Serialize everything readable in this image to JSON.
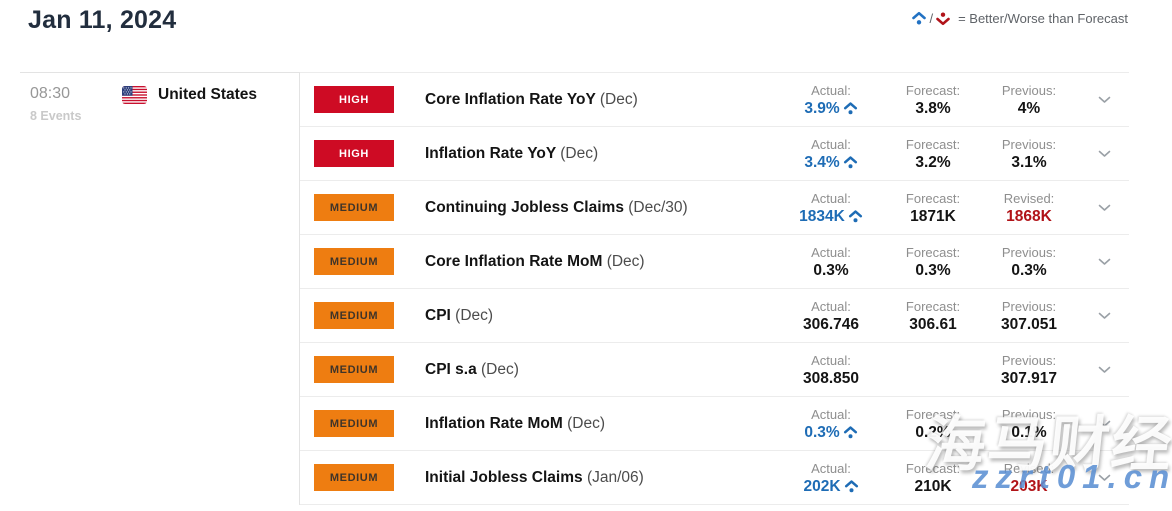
{
  "header": {
    "title": "Jan 11, 2024",
    "legend": {
      "separator": "/",
      "text": "= Better/Worse than Forecast"
    }
  },
  "sidebar": {
    "time": "08:30",
    "events_count": "8 Events",
    "country": "United States"
  },
  "colors": {
    "high_badge": "#ce0b24",
    "medium_badge": "#ee7d11",
    "better_blue": "#1e6cb5",
    "revised_red": "#b11318"
  },
  "events": [
    {
      "importance": "HIGH",
      "name": "Core Inflation Rate YoY",
      "period": "(Dec)",
      "actual": {
        "label": "Actual:",
        "value": "3.9%",
        "state": "better"
      },
      "forecast": {
        "label": "Forecast:",
        "value": "3.8%"
      },
      "third": {
        "label": "Previous:",
        "value": "4%",
        "state": "normal"
      }
    },
    {
      "importance": "HIGH",
      "name": "Inflation Rate YoY",
      "period": "(Dec)",
      "actual": {
        "label": "Actual:",
        "value": "3.4%",
        "state": "better"
      },
      "forecast": {
        "label": "Forecast:",
        "value": "3.2%"
      },
      "third": {
        "label": "Previous:",
        "value": "3.1%",
        "state": "normal"
      }
    },
    {
      "importance": "MEDIUM",
      "name": "Continuing Jobless Claims",
      "period": "(Dec/30)",
      "actual": {
        "label": "Actual:",
        "value": "1834K",
        "state": "better"
      },
      "forecast": {
        "label": "Forecast:",
        "value": "1871K"
      },
      "third": {
        "label": "Revised:",
        "value": "1868K",
        "state": "revised"
      }
    },
    {
      "importance": "MEDIUM",
      "name": "Core Inflation Rate MoM",
      "period": "(Dec)",
      "actual": {
        "label": "Actual:",
        "value": "0.3%",
        "state": "normal"
      },
      "forecast": {
        "label": "Forecast:",
        "value": "0.3%"
      },
      "third": {
        "label": "Previous:",
        "value": "0.3%",
        "state": "normal"
      }
    },
    {
      "importance": "MEDIUM",
      "name": "CPI",
      "period": "(Dec)",
      "actual": {
        "label": "Actual:",
        "value": "306.746",
        "state": "normal"
      },
      "forecast": {
        "label": "Forecast:",
        "value": "306.61"
      },
      "third": {
        "label": "Previous:",
        "value": "307.051",
        "state": "normal"
      }
    },
    {
      "importance": "MEDIUM",
      "name": "CPI s.a",
      "period": "(Dec)",
      "actual": {
        "label": "Actual:",
        "value": "308.850",
        "state": "normal"
      },
      "forecast": null,
      "third": {
        "label": "Previous:",
        "value": "307.917",
        "state": "normal"
      }
    },
    {
      "importance": "MEDIUM",
      "name": "Inflation Rate MoM",
      "period": "(Dec)",
      "actual": {
        "label": "Actual:",
        "value": "0.3%",
        "state": "better"
      },
      "forecast": {
        "label": "Forecast:",
        "value": "0.2%"
      },
      "third": {
        "label": "Previous:",
        "value": "0.1%",
        "state": "normal"
      }
    },
    {
      "importance": "MEDIUM",
      "name": "Initial Jobless Claims",
      "period": "(Jan/06)",
      "actual": {
        "label": "Actual:",
        "value": "202K",
        "state": "better"
      },
      "forecast": {
        "label": "Forecast:",
        "value": "210K"
      },
      "third": {
        "label": "Revised:",
        "value": "203K",
        "state": "revised"
      }
    }
  ],
  "watermark": {
    "line1": "海马财经",
    "line2": "zzrt01.cn"
  }
}
